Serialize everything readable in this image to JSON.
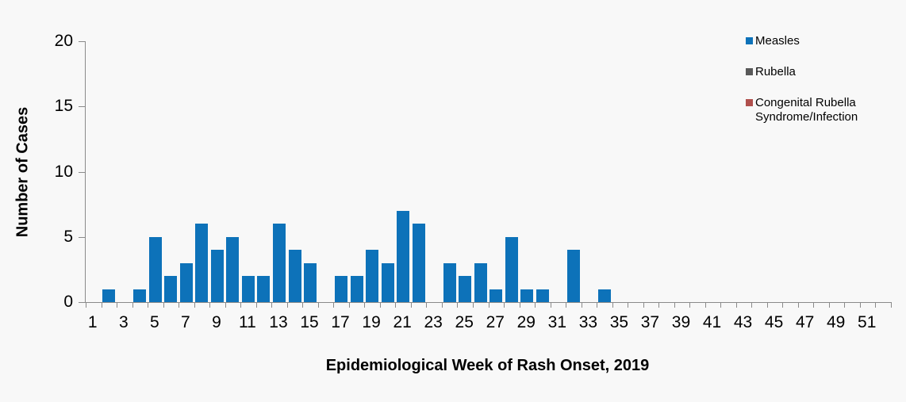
{
  "chart_data": {
    "type": "bar",
    "title": "",
    "xlabel": "Epidemiological Week of Rash Onset, 2019",
    "ylabel": "Number of Cases",
    "x": [
      1,
      2,
      3,
      4,
      5,
      6,
      7,
      8,
      9,
      10,
      11,
      12,
      13,
      14,
      15,
      16,
      17,
      18,
      19,
      20,
      21,
      22,
      23,
      24,
      25,
      26,
      27,
      28,
      29,
      30,
      31,
      32,
      33,
      34,
      35,
      36,
      37,
      38,
      39,
      40,
      41,
      42,
      43,
      44,
      45,
      46,
      47,
      48,
      49,
      50,
      51,
      52
    ],
    "xtick_labels": [
      1,
      3,
      5,
      7,
      9,
      11,
      13,
      15,
      17,
      19,
      21,
      23,
      25,
      27,
      29,
      31,
      33,
      35,
      37,
      39,
      41,
      43,
      45,
      47,
      49,
      51
    ],
    "ylim": [
      0,
      20
    ],
    "yticks": [
      0,
      5,
      10,
      15,
      20
    ],
    "grid": false,
    "legend_position": "top-right",
    "series": [
      {
        "name": "Measles",
        "color": "#0d72b9",
        "values": [
          0,
          1,
          0,
          1,
          5,
          2,
          3,
          6,
          4,
          5,
          2,
          2,
          6,
          4,
          3,
          0,
          2,
          2,
          4,
          3,
          7,
          6,
          0,
          3,
          2,
          3,
          1,
          5,
          1,
          1,
          0,
          4,
          0,
          1,
          0,
          0,
          0,
          0,
          0,
          0,
          0,
          0,
          0,
          0,
          0,
          0,
          0,
          0,
          0,
          0,
          0,
          0
        ]
      },
      {
        "name": "Rubella",
        "color": "#595959",
        "values": [
          0,
          0,
          0,
          0,
          0,
          0,
          0,
          0,
          0,
          0,
          0,
          0,
          0,
          0,
          0,
          0,
          0,
          0,
          0,
          0,
          0,
          0,
          0,
          0,
          0,
          0,
          0,
          0,
          0,
          0,
          0,
          0,
          0,
          0,
          0,
          0,
          0,
          0,
          0,
          0,
          0,
          0,
          0,
          0,
          0,
          0,
          0,
          0,
          0,
          0,
          0,
          0
        ]
      },
      {
        "name": "Congenital Rubella Syndrome/Infection",
        "color": "#b0504d",
        "values": [
          0,
          0,
          0,
          0,
          0,
          0,
          0,
          0,
          0,
          0,
          0,
          0,
          0,
          0,
          0,
          0,
          0,
          0,
          0,
          0,
          0,
          0,
          0,
          0,
          0,
          0,
          0,
          0,
          0,
          0,
          0,
          0,
          0,
          0,
          0,
          0,
          0,
          0,
          0,
          0,
          0,
          0,
          0,
          0,
          0,
          0,
          0,
          0,
          0,
          0,
          0,
          0
        ]
      }
    ]
  },
  "colors": {
    "background": "#f8f8f8",
    "axis": "#8a8a8a",
    "text": "#000000"
  }
}
